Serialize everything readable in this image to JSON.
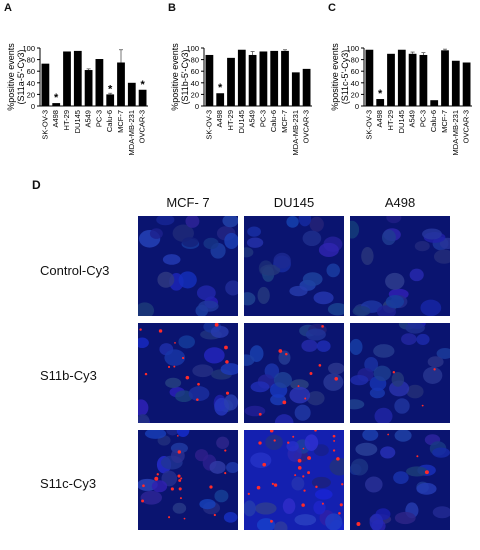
{
  "panels": [
    "A",
    "B",
    "C",
    "D"
  ],
  "chart_data": [
    {
      "type": "bar",
      "panel": "A",
      "ylabel": "%positive events\n(S11a-5'-Cy3)",
      "ylim": [
        0,
        100
      ],
      "yticks": [
        0,
        20,
        40,
        60,
        80,
        100
      ],
      "categories": [
        "SK-OV-3",
        "A498",
        "HT-29",
        "DU145",
        "A549",
        "PC-3",
        "Calu-6",
        "MCF-7",
        "MDA-MB-231",
        "OVCAR-3"
      ],
      "values": [
        73,
        5,
        94,
        95,
        62,
        81,
        20,
        75,
        40,
        28
      ],
      "errors": [
        0,
        0,
        0,
        0,
        2,
        0,
        2,
        22,
        0,
        0
      ],
      "stars": [
        false,
        true,
        false,
        false,
        false,
        false,
        true,
        false,
        false,
        true
      ]
    },
    {
      "type": "bar",
      "panel": "B",
      "ylabel": "%positive events\n(S11b-5'-Cy3)",
      "ylim": [
        0,
        100
      ],
      "yticks": [
        0,
        20,
        40,
        60,
        80,
        100
      ],
      "categories": [
        "SK-OV-3",
        "A498",
        "HT-29",
        "DU145",
        "A549",
        "PC-3",
        "Calu-6",
        "MCF-7",
        "MDA-MB-231",
        "OVCAR-3"
      ],
      "values": [
        88,
        22,
        83,
        97,
        88,
        94,
        95,
        95,
        58,
        64
      ],
      "errors": [
        0,
        0,
        0,
        0,
        6,
        0,
        0,
        2,
        0,
        0
      ],
      "stars": [
        false,
        true,
        false,
        false,
        false,
        false,
        false,
        false,
        false,
        false
      ]
    },
    {
      "type": "bar",
      "panel": "C",
      "ylabel": "%positive events\n(S11c-5'-Cy3)",
      "ylim": [
        0,
        100
      ],
      "yticks": [
        0,
        20,
        40,
        60,
        80,
        100
      ],
      "categories": [
        "SK-OV-3",
        "A498",
        "HT-29",
        "DU145",
        "A549",
        "PC-3",
        "Calu-6",
        "MCF-7",
        "MDA-MB-231",
        "OVCAR-3"
      ],
      "values": [
        97,
        12,
        90,
        97,
        90,
        88,
        10,
        96,
        78,
        75
      ],
      "errors": [
        0,
        0,
        0,
        0,
        3,
        4,
        0,
        2,
        0,
        0
      ],
      "stars": [
        false,
        true,
        false,
        false,
        false,
        false,
        false,
        false,
        false,
        false
      ]
    }
  ],
  "microscopy": {
    "columns": [
      "MCF- 7",
      "DU145",
      "A498"
    ],
    "rows": [
      "Control-Cy3",
      "S11b-Cy3",
      "S11c-Cy3"
    ]
  }
}
